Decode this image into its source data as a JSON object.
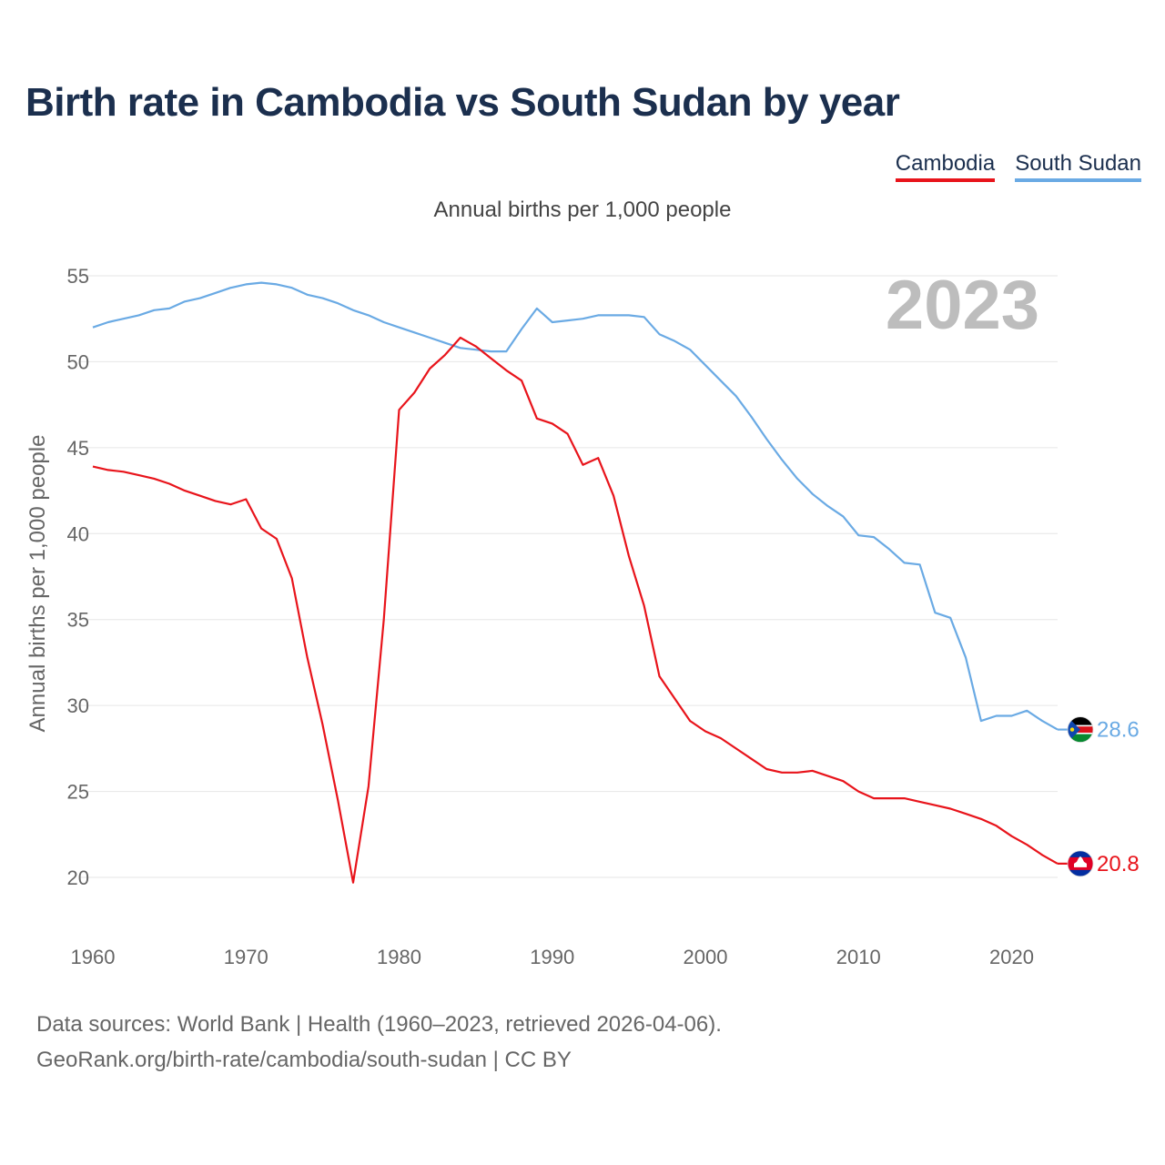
{
  "title": "Birth rate in Cambodia vs South Sudan by year",
  "subtitle": "Annual births per 1,000 people",
  "current_year": "2023",
  "source_line1": "Data sources: World Bank | Health (1960–2023, retrieved 2026-04-06).",
  "source_line2": "GeoRank.org/birth-rate/cambodia/south-sudan | CC BY",
  "colors": {
    "cambodia": "#e8141b",
    "south_sudan": "#6aaae4",
    "grid": "#e6e6e6"
  },
  "chart_data": {
    "type": "line",
    "title": "Birth rate in Cambodia vs South Sudan by year",
    "xlabel": "",
    "ylabel": "Annual births per 1,000 people",
    "xlim": [
      1960,
      2023
    ],
    "ylim": [
      20,
      55
    ],
    "x_ticks": [
      1960,
      1970,
      1980,
      1990,
      2000,
      2010,
      2020
    ],
    "y_ticks": [
      20,
      25,
      30,
      35,
      40,
      45,
      50,
      55
    ],
    "legend": "top-right",
    "x": [
      1960,
      1961,
      1962,
      1963,
      1964,
      1965,
      1966,
      1967,
      1968,
      1969,
      1970,
      1971,
      1972,
      1973,
      1974,
      1975,
      1976,
      1977,
      1978,
      1979,
      1980,
      1981,
      1982,
      1983,
      1984,
      1985,
      1986,
      1987,
      1988,
      1989,
      1990,
      1991,
      1992,
      1993,
      1994,
      1995,
      1996,
      1997,
      1998,
      1999,
      2000,
      2001,
      2002,
      2003,
      2004,
      2005,
      2006,
      2007,
      2008,
      2009,
      2010,
      2011,
      2012,
      2013,
      2014,
      2015,
      2016,
      2017,
      2018,
      2019,
      2020,
      2021,
      2022,
      2023
    ],
    "series": [
      {
        "name": "Cambodia",
        "end_label": "20.8",
        "values": [
          43.9,
          43.7,
          43.6,
          43.4,
          43.2,
          42.9,
          42.5,
          42.2,
          41.9,
          41.7,
          42.0,
          40.3,
          39.7,
          37.4,
          32.8,
          28.9,
          24.5,
          19.7,
          25.3,
          35.0,
          47.2,
          48.2,
          49.6,
          50.4,
          51.4,
          50.9,
          50.2,
          49.5,
          48.9,
          46.7,
          46.4,
          45.8,
          44.0,
          44.4,
          42.2,
          38.7,
          35.8,
          31.7,
          30.4,
          29.1,
          28.5,
          28.1,
          27.5,
          26.9,
          26.3,
          26.1,
          26.1,
          26.2,
          25.9,
          25.6,
          25.0,
          24.6,
          24.6,
          24.6,
          24.4,
          24.2,
          24.0,
          23.7,
          23.4,
          23.0,
          22.4,
          21.9,
          21.3,
          20.8
        ]
      },
      {
        "name": "South Sudan",
        "end_label": "28.6",
        "values": [
          52.0,
          52.3,
          52.5,
          52.7,
          53.0,
          53.1,
          53.5,
          53.7,
          54.0,
          54.3,
          54.5,
          54.6,
          54.5,
          54.3,
          53.9,
          53.7,
          53.4,
          53.0,
          52.7,
          52.3,
          52.0,
          51.7,
          51.4,
          51.1,
          50.8,
          50.7,
          50.6,
          50.6,
          51.9,
          53.1,
          52.3,
          52.4,
          52.5,
          52.7,
          52.7,
          52.7,
          52.6,
          51.6,
          51.2,
          50.7,
          49.8,
          48.9,
          48.0,
          46.8,
          45.5,
          44.3,
          43.2,
          42.3,
          41.6,
          41.0,
          39.9,
          39.8,
          39.1,
          38.3,
          38.2,
          35.4,
          35.1,
          32.8,
          29.1,
          29.4,
          29.4,
          29.7,
          29.1,
          28.6
        ]
      }
    ]
  }
}
